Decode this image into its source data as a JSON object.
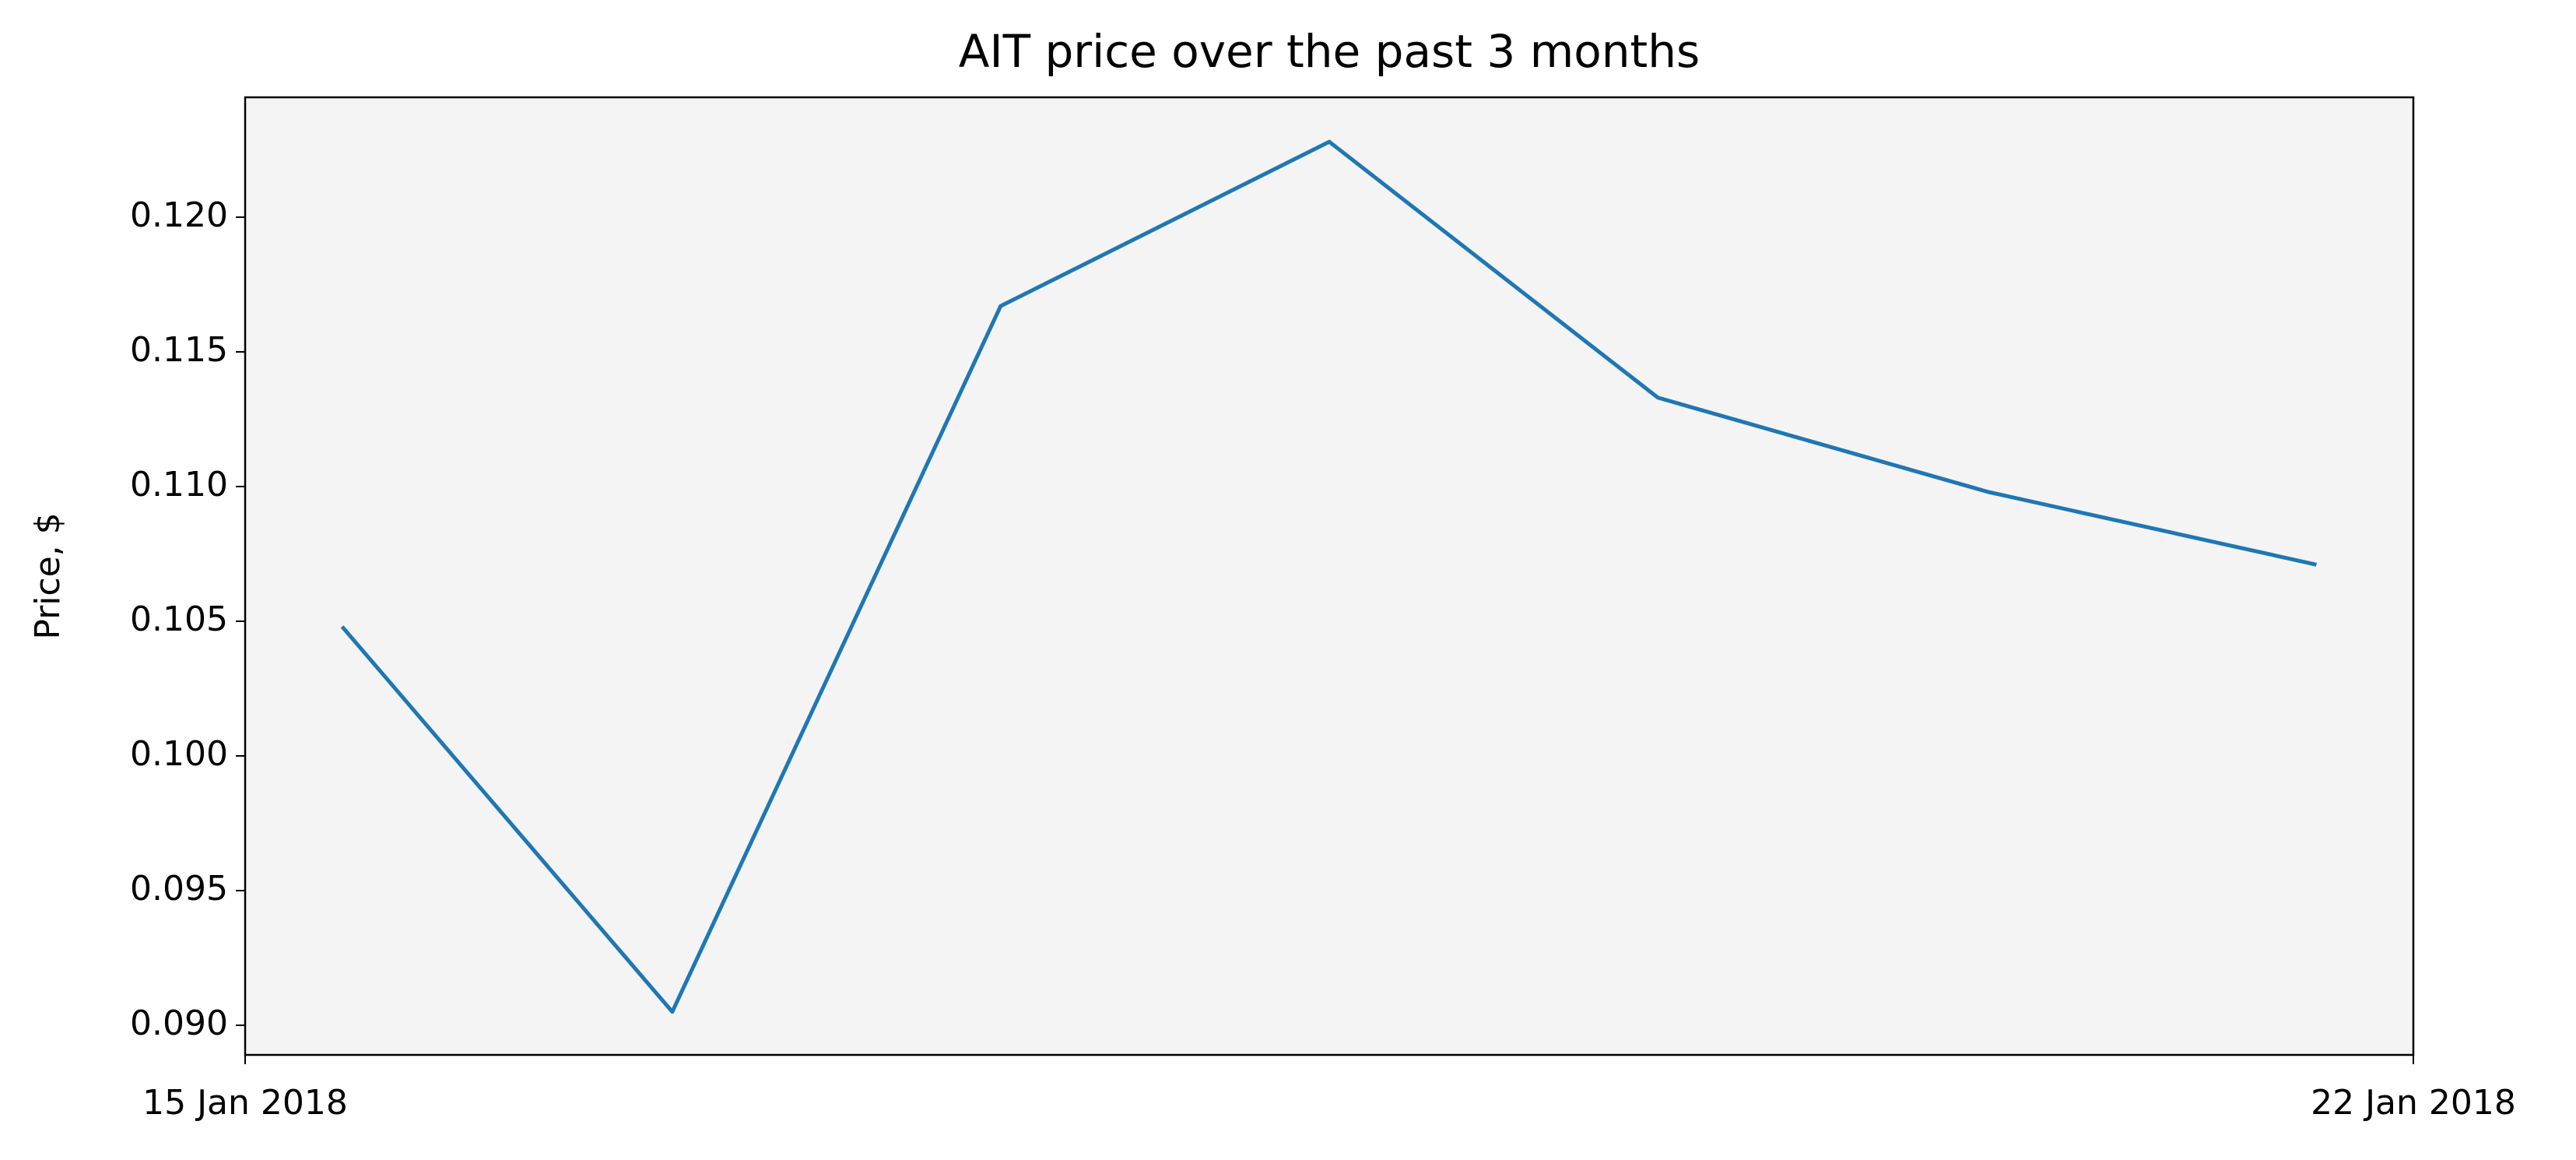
{
  "chart_data": {
    "type": "line",
    "title": "AIT price over the past 3 months",
    "y_label": "Price, $",
    "x": [
      0.313,
      1.379,
      2.439,
      3.5,
      4.561,
      5.627,
      6.687
    ],
    "xlim": [
      0,
      7
    ],
    "xticks": [
      {
        "value": 0,
        "label": "15 Jan 2018"
      },
      {
        "value": 7,
        "label": "22 Jan 2018"
      }
    ],
    "series": [
      {
        "name": "AIT",
        "color": "#1f77b4",
        "values": [
          0.1048,
          0.0905,
          0.1167,
          0.1228,
          0.1133,
          0.1098,
          0.1071
        ]
      }
    ],
    "ylim": [
      0.0889,
      0.12445
    ],
    "yticks": [
      {
        "value": 0.09,
        "label": "0.090"
      },
      {
        "value": 0.095,
        "label": "0.095"
      },
      {
        "value": 0.1,
        "label": "0.100"
      },
      {
        "value": 0.105,
        "label": "0.105"
      },
      {
        "value": 0.11,
        "label": "0.110"
      },
      {
        "value": 0.115,
        "label": "0.115"
      },
      {
        "value": 0.12,
        "label": "0.120"
      }
    ],
    "plot_background": "#f4f4f4",
    "grid": false
  }
}
